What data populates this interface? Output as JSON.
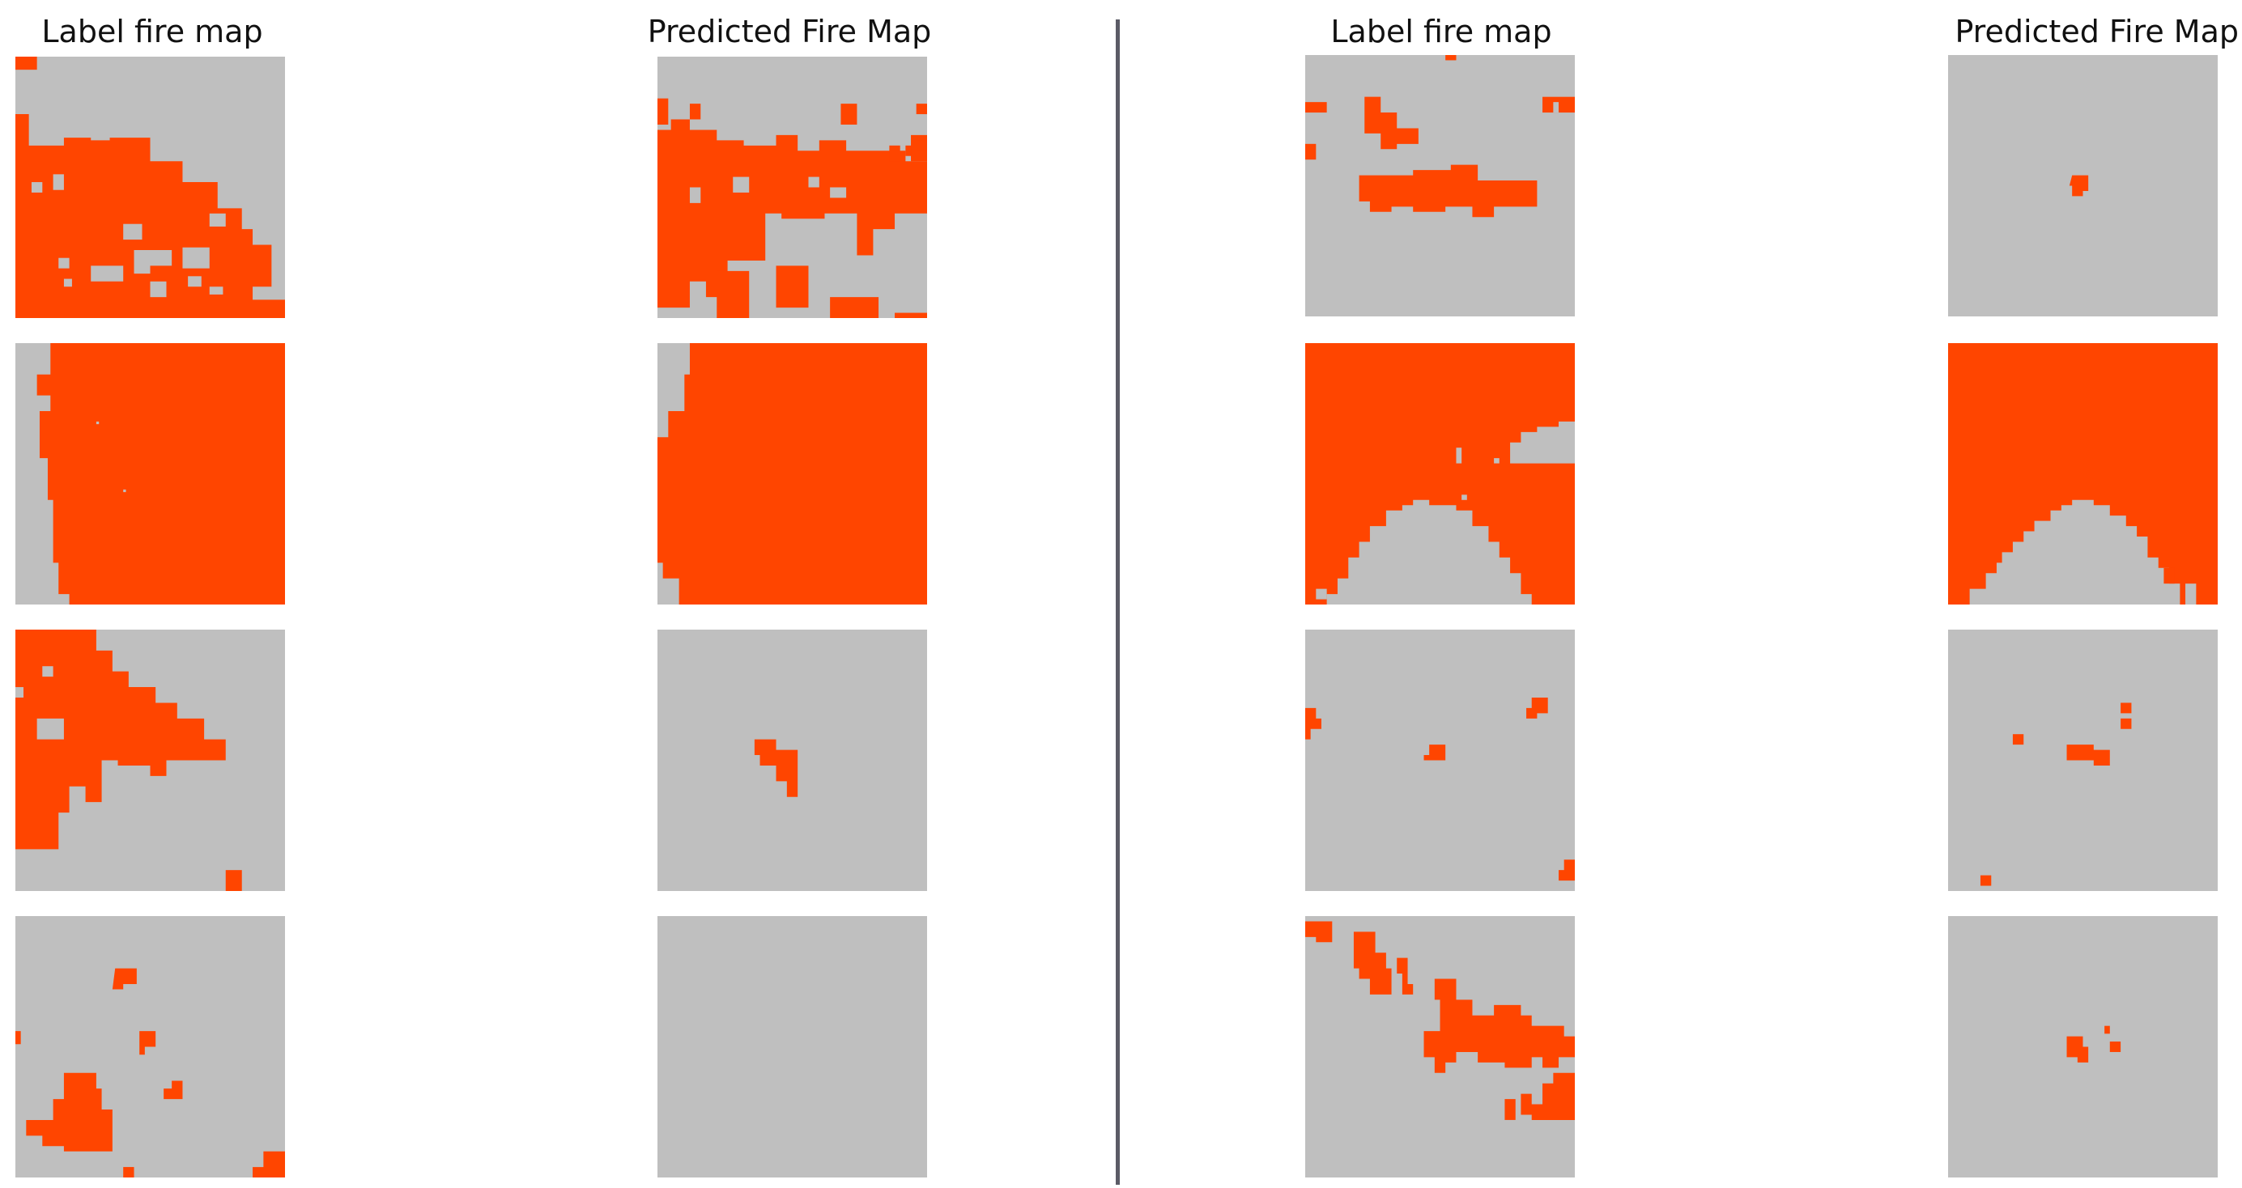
{
  "figure": {
    "left_group": {
      "label_title": "Label fire map",
      "predicted_title": "Predicted Fire Map"
    },
    "right_group": {
      "label_title": "Label fire map",
      "predicted_title": "Predicted Fire Map"
    }
  },
  "colors": {
    "fire": "#ff4500",
    "background": "#bfbfbf",
    "divider": "#5b5b66"
  }
}
